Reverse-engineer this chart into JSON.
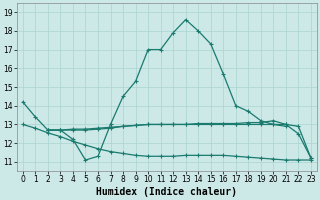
{
  "title": "",
  "xlabel": "Humidex (Indice chaleur)",
  "ylabel": "",
  "background_color": "#cce9e8",
  "grid_color": "#aad4d2",
  "line_color": "#1a7a6e",
  "xlim": [
    -0.5,
    23.5
  ],
  "ylim": [
    10.5,
    19.5
  ],
  "xticks": [
    0,
    1,
    2,
    3,
    4,
    5,
    6,
    7,
    8,
    9,
    10,
    11,
    12,
    13,
    14,
    15,
    16,
    17,
    18,
    19,
    20,
    21,
    22,
    23
  ],
  "yticks": [
    11,
    12,
    13,
    14,
    15,
    16,
    17,
    18,
    19
  ],
  "series": [
    {
      "x": [
        0,
        1,
        2,
        3,
        4,
        5,
        6,
        7,
        8,
        9,
        10,
        11,
        12,
        13,
        14,
        15,
        16,
        17,
        18,
        19,
        20,
        21
      ],
      "y": [
        14.2,
        13.4,
        12.7,
        12.7,
        12.2,
        11.1,
        11.3,
        13.0,
        14.5,
        15.3,
        17.0,
        17.0,
        17.9,
        18.6,
        18.0,
        17.3,
        15.7,
        14.0,
        13.7,
        13.2,
        13.0,
        12.9
      ]
    },
    {
      "x": [
        2,
        3,
        4,
        5,
        6,
        7,
        8,
        9,
        10,
        11,
        12,
        13,
        14,
        15,
        16,
        17,
        18,
        19,
        20,
        21,
        22,
        23
      ],
      "y": [
        12.7,
        12.7,
        12.75,
        12.75,
        12.8,
        12.85,
        12.9,
        12.95,
        13.0,
        13.0,
        13.0,
        13.0,
        13.05,
        13.05,
        13.05,
        13.05,
        13.1,
        13.1,
        13.2,
        13.0,
        12.5,
        11.2
      ]
    },
    {
      "x": [
        2,
        3,
        4,
        5,
        6,
        7,
        8,
        9,
        10,
        11,
        12,
        13,
        14,
        15,
        16,
        17,
        18,
        19,
        20,
        21,
        22,
        23
      ],
      "y": [
        12.7,
        12.7,
        12.7,
        12.7,
        12.75,
        12.8,
        12.9,
        12.95,
        13.0,
        13.0,
        13.0,
        13.0,
        13.0,
        13.0,
        13.0,
        13.0,
        13.0,
        13.0,
        13.0,
        13.0,
        12.9,
        11.2
      ]
    },
    {
      "x": [
        0,
        1,
        2,
        3,
        4,
        5,
        6,
        7,
        8,
        9,
        10,
        11,
        12,
        13,
        14,
        15,
        16,
        17,
        18,
        19,
        20,
        21,
        22,
        23
      ],
      "y": [
        13.0,
        12.8,
        12.55,
        12.35,
        12.1,
        11.9,
        11.7,
        11.55,
        11.45,
        11.35,
        11.3,
        11.3,
        11.3,
        11.35,
        11.35,
        11.35,
        11.35,
        11.3,
        11.25,
        11.2,
        11.15,
        11.1,
        11.1,
        11.1
      ]
    }
  ]
}
